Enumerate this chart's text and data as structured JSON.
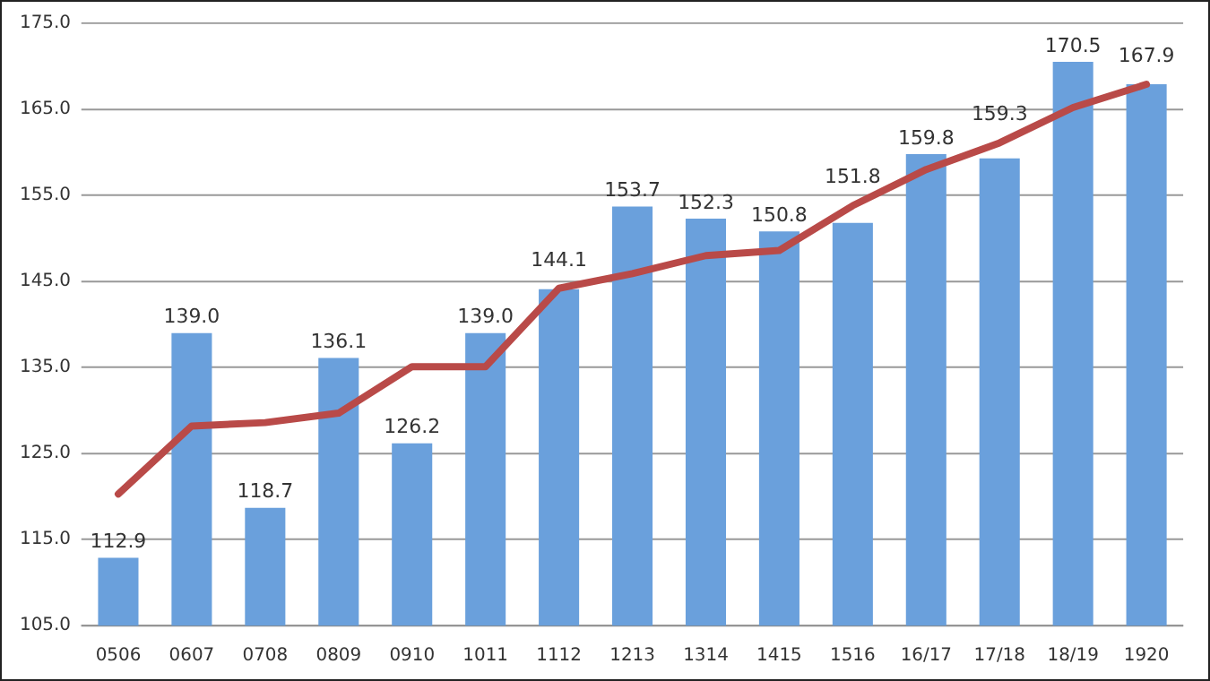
{
  "chart_data": {
    "type": "bar",
    "categories": [
      "0506",
      "0607",
      "0708",
      "0809",
      "0910",
      "1011",
      "1112",
      "1213",
      "1314",
      "1415",
      "1516",
      "16/17",
      "17/18",
      "18/19",
      "1920"
    ],
    "series": [
      {
        "color": "#6aa0dc",
        "values": [
          112.9,
          139.0,
          118.7,
          136.1,
          126.2,
          139.0,
          144.1,
          153.7,
          152.3,
          150.8,
          151.8,
          159.8,
          159.3,
          170.5,
          167.9
        ],
        "value_labels": [
          "112.9",
          "139.0",
          "118.7",
          "136.1",
          "126.2",
          "139.0",
          "144.1",
          "153.7",
          "152.3",
          "150.8",
          "151.8",
          "159.8",
          "159.3",
          "170.5",
          "167.9"
        ]
      },
      {
        "type": "line",
        "color": "#b94a48",
        "values": [
          120.3,
          128.2,
          128.6,
          129.7,
          135.1,
          135.1,
          144.2,
          145.9,
          148.0,
          148.6,
          153.8,
          158.0,
          161.1,
          165.2,
          167.9
        ]
      }
    ],
    "ylim": [
      105,
      175
    ],
    "yticks": [
      {
        "value": 105,
        "label": "105.0"
      },
      {
        "value": 115,
        "label": "115.0"
      },
      {
        "value": 125,
        "label": "125.0"
      },
      {
        "value": 135,
        "label": "135.0"
      },
      {
        "value": 145,
        "label": "145.0"
      },
      {
        "value": 155,
        "label": "155.0"
      },
      {
        "value": 165,
        "label": "165.0"
      },
      {
        "value": 175,
        "label": "175.0"
      }
    ],
    "grid": "y",
    "legend": false,
    "marker": "none"
  }
}
